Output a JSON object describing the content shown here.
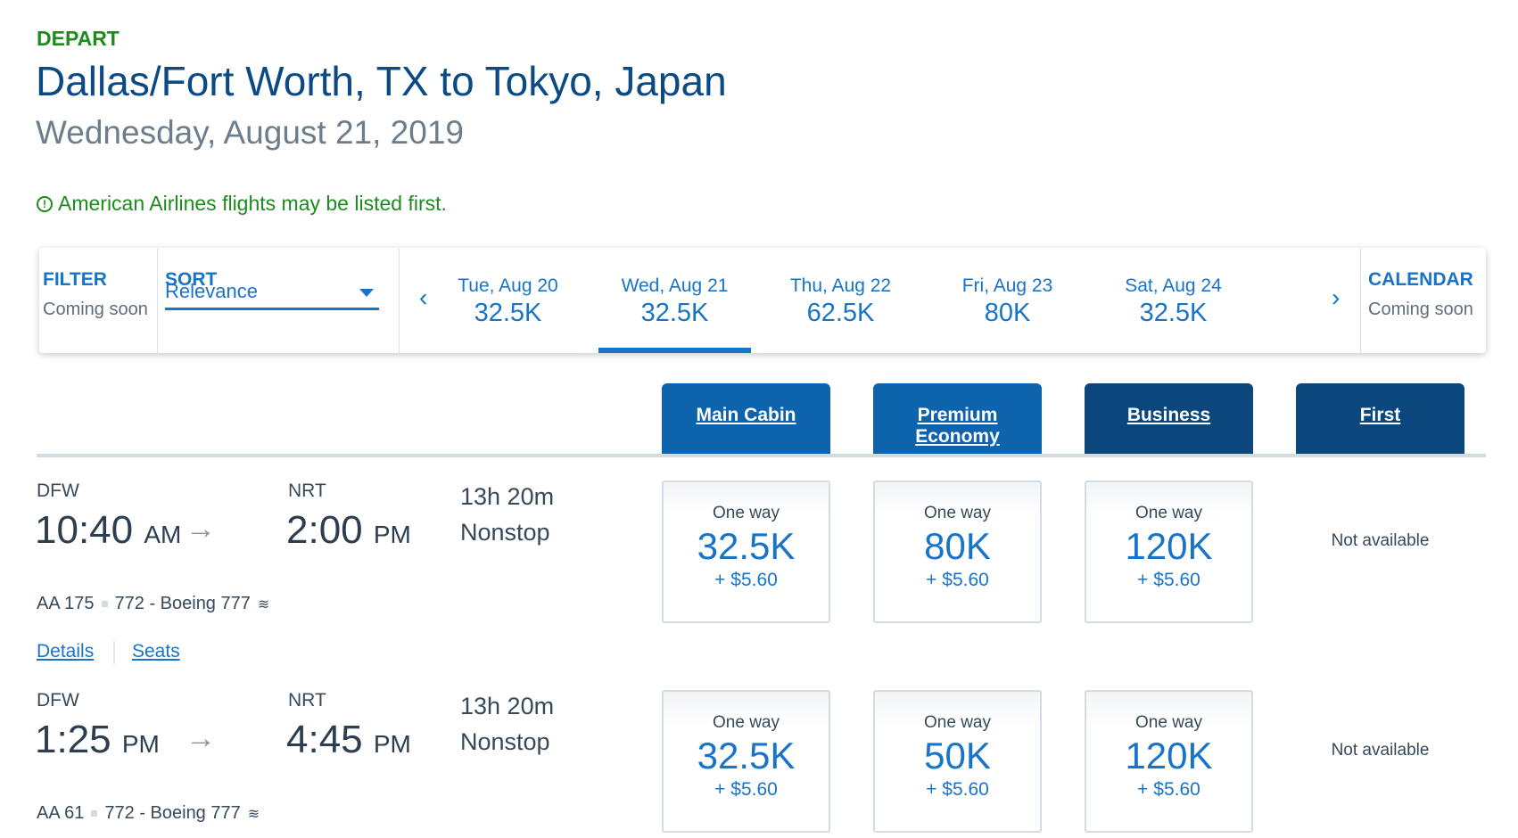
{
  "header": {
    "label": "DEPART",
    "route": "Dallas/Fort Worth, TX to Tokyo, Japan",
    "date": "Wednesday, August 21, 2019",
    "notice": "American Airlines flights may be listed first.",
    "notice_icon": "exclamation-circle-icon"
  },
  "toolbar": {
    "filter": {
      "label": "FILTER",
      "value": "Coming soon"
    },
    "sort": {
      "label": "SORT",
      "selected": "Relevance"
    },
    "dates": [
      {
        "day": "Tue, Aug 20",
        "price": "32.5K"
      },
      {
        "day": "Wed, Aug 21",
        "price": "32.5K",
        "active": true
      },
      {
        "day": "Thu, Aug 22",
        "price": "62.5K"
      },
      {
        "day": "Fri, Aug 23",
        "price": "80K"
      },
      {
        "day": "Sat, Aug 24",
        "price": "32.5K"
      }
    ],
    "prev": "‹",
    "next": "›",
    "calendar": {
      "label": "CALENDAR",
      "value": "Coming soon"
    }
  },
  "cabins": [
    "Main Cabin",
    "Premium Economy",
    "Business",
    "First"
  ],
  "colors": {
    "accent": "#1874c8",
    "main_tab": "#0e63ad",
    "dark_tab": "#0b477d",
    "green": "#1d8b1d"
  },
  "flights": [
    {
      "from": "DFW",
      "dep": "10:40",
      "dep_ampm": "AM",
      "to": "NRT",
      "arr": "2:00",
      "arr_ampm": "PM",
      "duration": "13h 20m",
      "stops": "Nonstop",
      "flight": "AA 175",
      "aircraft": "772 - Boeing 777",
      "details": "Details",
      "seats": "Seats",
      "fares": [
        {
          "label": "One way",
          "points": "32.5K",
          "tax": "+ $5.60"
        },
        {
          "label": "One way",
          "points": "80K",
          "tax": "+ $5.60"
        },
        {
          "label": "One way",
          "points": "120K",
          "tax": "+ $5.60"
        }
      ],
      "first": "Not available"
    },
    {
      "from": "DFW",
      "dep": "1:25",
      "dep_ampm": "PM",
      "to": "NRT",
      "arr": "4:45",
      "arr_ampm": "PM",
      "duration": "13h 20m",
      "stops": "Nonstop",
      "flight": "AA 61",
      "aircraft": "772 - Boeing 777",
      "fares": [
        {
          "label": "One way",
          "points": "32.5K",
          "tax": "+ $5.60"
        },
        {
          "label": "One way",
          "points": "50K",
          "tax": "+ $5.60"
        },
        {
          "label": "One way",
          "points": "120K",
          "tax": "+ $5.60"
        }
      ],
      "first": "Not available"
    }
  ]
}
